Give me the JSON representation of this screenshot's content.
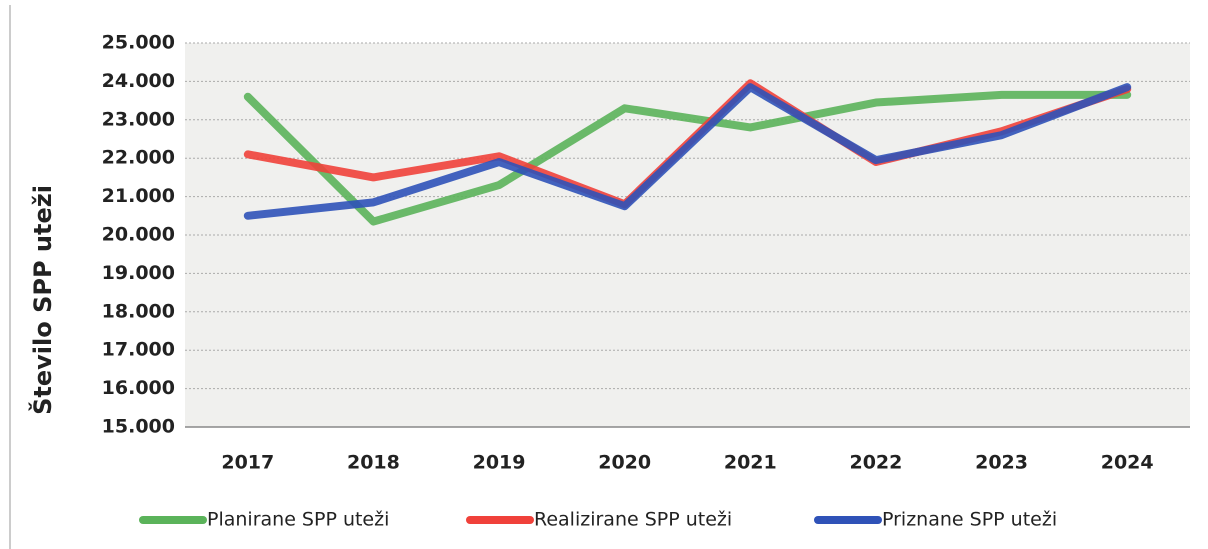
{
  "chart_data": {
    "type": "line",
    "y_label": "Število SPP uteži",
    "categories": [
      "2017",
      "2018",
      "2019",
      "2020",
      "2021",
      "2022",
      "2023",
      "2024"
    ],
    "series": [
      {
        "name": "Planirane SPP uteži",
        "color": "#5bb35a",
        "values": [
          23600,
          20350,
          21300,
          23300,
          22800,
          23450,
          23650,
          23650
        ]
      },
      {
        "name": "Realizirane SPP uteži",
        "color": "#f0413a",
        "values": [
          22100,
          21500,
          22050,
          20800,
          23950,
          21900,
          22700,
          23800
        ]
      },
      {
        "name": "Priznane SPP uteži",
        "color": "#2f52b8",
        "values": [
          20500,
          20850,
          21900,
          20750,
          23850,
          21950,
          22600,
          23850
        ]
      }
    ],
    "ylim": [
      15000,
      25000
    ],
    "yticks": [
      {
        "value": 15000,
        "label": "15.000"
      },
      {
        "value": 16000,
        "label": "16.000"
      },
      {
        "value": 17000,
        "label": "17.000"
      },
      {
        "value": 18000,
        "label": "18.000"
      },
      {
        "value": 19000,
        "label": "19.000"
      },
      {
        "value": 20000,
        "label": "20.000"
      },
      {
        "value": 21000,
        "label": "21.000"
      },
      {
        "value": 22000,
        "label": "22.000"
      },
      {
        "value": 23000,
        "label": "23.000"
      },
      {
        "value": 24000,
        "label": "24.000"
      },
      {
        "value": 25000,
        "label": "25.000"
      }
    ],
    "grid": true,
    "legend": "bottom"
  }
}
